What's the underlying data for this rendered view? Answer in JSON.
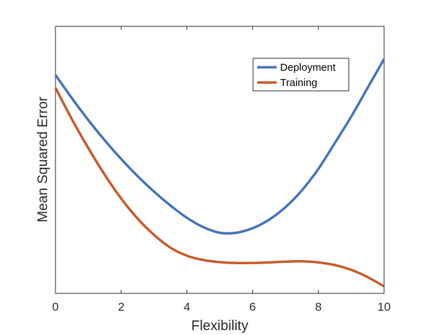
{
  "chart_data": {
    "type": "line",
    "title": "",
    "xlabel": "Flexibility",
    "ylabel": "Mean Squared Error",
    "xlim": [
      0,
      10
    ],
    "ylim": [
      0,
      1
    ],
    "x_ticks": [
      0,
      2,
      4,
      6,
      8,
      10
    ],
    "y_ticks": [],
    "grid": false,
    "legend_position": "top-right",
    "series": [
      {
        "name": "Deployment",
        "color": "#4472b8",
        "x": [
          0,
          0.5,
          1,
          1.5,
          2,
          2.5,
          3,
          3.5,
          4,
          4.5,
          5,
          5.5,
          6,
          6.5,
          7,
          7.5,
          8,
          8.5,
          9,
          9.5,
          10
        ],
        "y": [
          0.818,
          0.731,
          0.649,
          0.573,
          0.503,
          0.439,
          0.381,
          0.329,
          0.283,
          0.248,
          0.227,
          0.227,
          0.244,
          0.276,
          0.323,
          0.386,
          0.466,
          0.563,
          0.662,
          0.77,
          0.878
        ]
      },
      {
        "name": "Training",
        "color": "#c75928",
        "x": [
          0,
          0.5,
          1,
          1.5,
          2,
          2.5,
          3,
          3.5,
          4,
          4.5,
          5,
          5.5,
          6,
          6.5,
          7,
          7.5,
          8,
          8.5,
          9,
          9.5,
          10
        ],
        "y": [
          0.77,
          0.652,
          0.544,
          0.444,
          0.355,
          0.28,
          0.219,
          0.171,
          0.141,
          0.125,
          0.117,
          0.114,
          0.114,
          0.116,
          0.119,
          0.12,
          0.116,
          0.106,
          0.088,
          0.061,
          0.026
        ]
      }
    ]
  }
}
